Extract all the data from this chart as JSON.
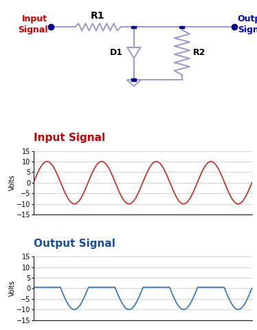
{
  "title_input": "Input Signal",
  "title_output": "Output Signal",
  "ylabel": "Volts",
  "ylim": [
    -15,
    15
  ],
  "yticks": [
    -15,
    -10,
    -5,
    0,
    5,
    10,
    15
  ],
  "amplitude": 10,
  "num_cycles": 4,
  "clip_high": 0.5,
  "input_color": "#c0392b",
  "output_color": "#3a7bbf",
  "title_input_color": "#cc0000",
  "title_output_color": "#1a4fa0",
  "circuit_line_color": "#9999cc",
  "circuit_dot_color": "#00008b",
  "label_color_input": "#cc0000",
  "label_color_output": "#0000cc",
  "bg_color": "#ffffff",
  "grid_color": "#cccccc",
  "title_fontsize": 11,
  "tick_fontsize": 7,
  "ylabel_fontsize": 7
}
